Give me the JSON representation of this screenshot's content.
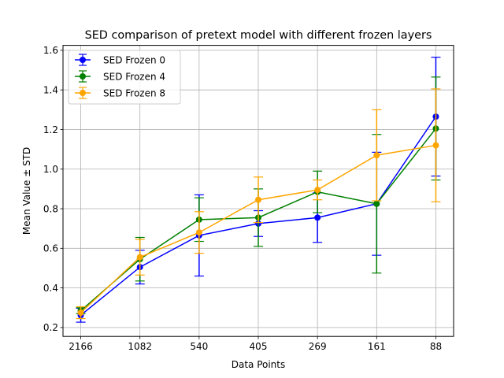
{
  "chart_data": {
    "type": "line",
    "title": "SED comparison of pretext model with different frozen layers",
    "xlabel": "Data Points",
    "ylabel": "Mean Value ± STD",
    "categories": [
      "2166",
      "1082",
      "540",
      "405",
      "269",
      "161",
      "88"
    ],
    "ylim": [
      0.155,
      1.625
    ],
    "yticks": [
      0.2,
      0.4,
      0.6,
      0.8,
      1.0,
      1.2,
      1.4,
      1.6
    ],
    "ytick_labels": [
      "0.2",
      "0.4",
      "0.6",
      "0.8",
      "1.0",
      "1.2",
      "1.4",
      "1.6"
    ],
    "grid": true,
    "legend_position": "upper-left",
    "series": [
      {
        "name": "SED Frozen 0",
        "color": "#0000ff",
        "values": [
          0.262,
          0.505,
          0.665,
          0.725,
          0.755,
          0.825,
          1.265
        ],
        "err": [
          0.035,
          0.085,
          0.205,
          0.065,
          0.125,
          0.26,
          0.3
        ]
      },
      {
        "name": "SED Frozen 4",
        "color": "#008000",
        "values": [
          0.285,
          0.545,
          0.745,
          0.755,
          0.885,
          0.825,
          1.205
        ],
        "err": [
          0.015,
          0.11,
          0.11,
          0.145,
          0.105,
          0.35,
          0.26
        ]
      },
      {
        "name": "SED Frozen 8",
        "color": "#ffa500",
        "values": [
          0.275,
          0.555,
          0.68,
          0.845,
          0.895,
          1.07,
          1.12
        ],
        "err": [
          0.03,
          0.09,
          0.105,
          0.115,
          0.05,
          0.23,
          0.285
        ]
      }
    ]
  }
}
